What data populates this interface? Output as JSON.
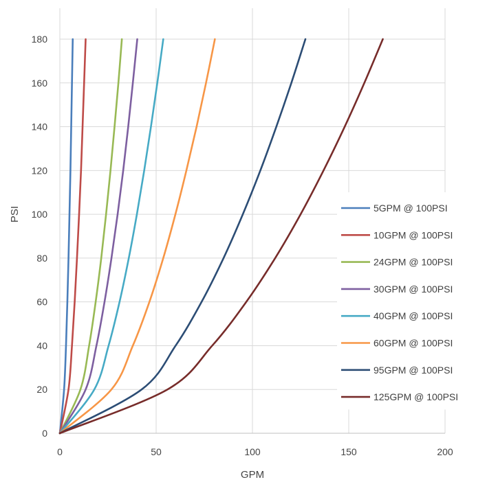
{
  "chart_data": {
    "type": "line",
    "title": "",
    "xlabel": "GPM",
    "ylabel": "PSI",
    "xlim": [
      0,
      200
    ],
    "ylim": [
      0,
      180
    ],
    "x_ticks": [
      0,
      50,
      100,
      150,
      200
    ],
    "y_ticks": [
      0,
      20,
      40,
      60,
      80,
      100,
      120,
      140,
      160,
      180
    ],
    "grid": true,
    "legend_position": "right",
    "series": [
      {
        "name": "5GPM @ 100PSI",
        "color": "#4a7ebb",
        "points": [
          [
            0,
            0
          ],
          [
            2.2,
            20
          ],
          [
            3.2,
            40
          ],
          [
            3.9,
            60
          ],
          [
            4.5,
            80
          ],
          [
            5.0,
            100
          ],
          [
            5.5,
            120
          ],
          [
            5.9,
            140
          ],
          [
            6.3,
            160
          ],
          [
            6.7,
            180
          ]
        ]
      },
      {
        "name": "10GPM @ 100PSI",
        "color": "#be4b48",
        "points": [
          [
            0,
            0
          ],
          [
            4.5,
            20
          ],
          [
            6.3,
            40
          ],
          [
            7.7,
            60
          ],
          [
            8.9,
            80
          ],
          [
            10.0,
            100
          ],
          [
            11.0,
            120
          ],
          [
            11.8,
            140
          ],
          [
            12.6,
            160
          ],
          [
            13.4,
            180
          ]
        ]
      },
      {
        "name": "24GPM @ 100PSI",
        "color": "#98b954",
        "points": [
          [
            0,
            0
          ],
          [
            10.7,
            20
          ],
          [
            15.2,
            40
          ],
          [
            18.6,
            60
          ],
          [
            21.5,
            80
          ],
          [
            24.0,
            100
          ],
          [
            26.3,
            120
          ],
          [
            28.4,
            140
          ],
          [
            30.4,
            160
          ],
          [
            32.2,
            180
          ]
        ]
      },
      {
        "name": "30GPM @ 100PSI",
        "color": "#7d5fa0",
        "points": [
          [
            0,
            0
          ],
          [
            13.4,
            20
          ],
          [
            19.0,
            40
          ],
          [
            23.2,
            60
          ],
          [
            26.8,
            80
          ],
          [
            30.0,
            100
          ],
          [
            32.9,
            120
          ],
          [
            35.5,
            140
          ],
          [
            37.9,
            160
          ],
          [
            40.2,
            180
          ]
        ]
      },
      {
        "name": "40GPM @ 100PSI",
        "color": "#46aac5",
        "points": [
          [
            0,
            0
          ],
          [
            17.9,
            20
          ],
          [
            25.3,
            40
          ],
          [
            31.0,
            60
          ],
          [
            35.8,
            80
          ],
          [
            40.0,
            100
          ],
          [
            43.8,
            120
          ],
          [
            47.3,
            140
          ],
          [
            50.6,
            160
          ],
          [
            53.7,
            180
          ]
        ]
      },
      {
        "name": "60GPM @ 100PSI",
        "color": "#f79646",
        "points": [
          [
            0,
            0
          ],
          [
            26.8,
            20
          ],
          [
            37.9,
            40
          ],
          [
            46.5,
            60
          ],
          [
            53.7,
            80
          ],
          [
            60.0,
            100
          ],
          [
            65.7,
            120
          ],
          [
            71.0,
            140
          ],
          [
            75.9,
            160
          ],
          [
            80.5,
            180
          ]
        ]
      },
      {
        "name": "95GPM @ 100PSI",
        "color": "#2c4d75",
        "points": [
          [
            0,
            0
          ],
          [
            42.5,
            20
          ],
          [
            60.1,
            40
          ],
          [
            73.6,
            60
          ],
          [
            85.0,
            80
          ],
          [
            95.0,
            100
          ],
          [
            104.1,
            120
          ],
          [
            112.4,
            140
          ],
          [
            120.2,
            160
          ],
          [
            127.5,
            180
          ]
        ]
      },
      {
        "name": "125GPM @ 100PSI",
        "color": "#772c2a",
        "points": [
          [
            0,
            0
          ],
          [
            55.9,
            20
          ],
          [
            79.1,
            40
          ],
          [
            96.8,
            60
          ],
          [
            111.8,
            80
          ],
          [
            125.0,
            100
          ],
          [
            136.9,
            120
          ],
          [
            147.9,
            140
          ],
          [
            158.1,
            160
          ],
          [
            167.7,
            180
          ]
        ]
      }
    ]
  }
}
